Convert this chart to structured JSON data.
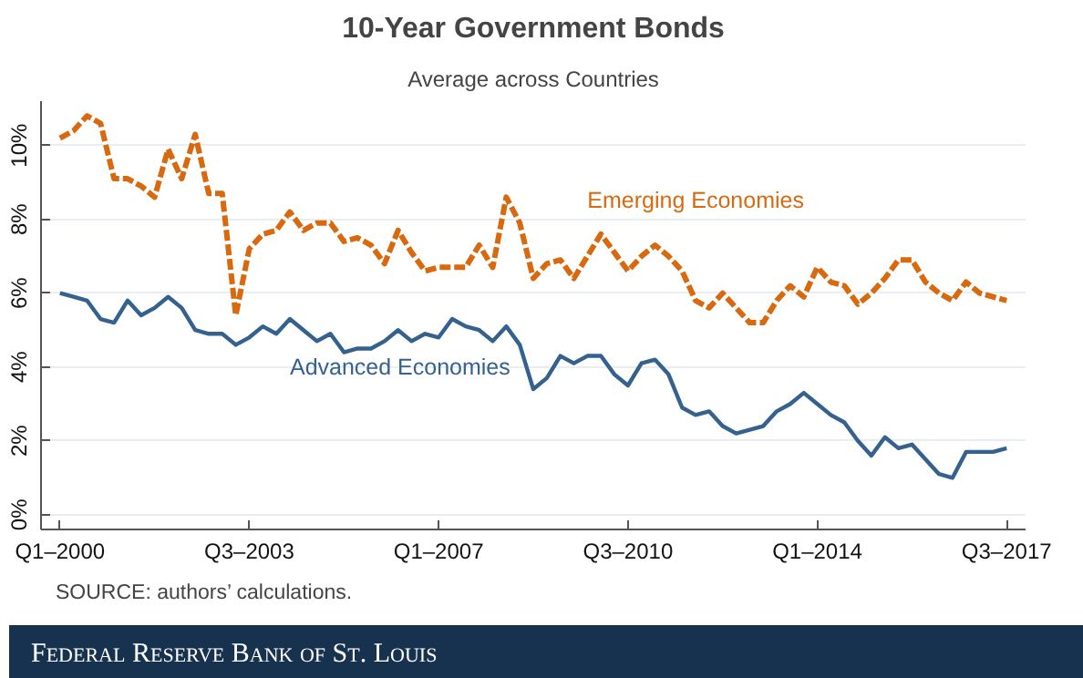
{
  "chart_data": {
    "type": "line",
    "title": "10-Year Government Bonds",
    "subtitle": "Average across Countries",
    "categories": [
      "Q1–2000",
      null,
      null,
      null,
      null,
      null,
      null,
      null,
      null,
      null,
      null,
      null,
      null,
      null,
      "Q3–2003",
      null,
      null,
      null,
      null,
      null,
      null,
      null,
      null,
      null,
      null,
      null,
      null,
      null,
      "Q1–2007",
      null,
      null,
      null,
      null,
      null,
      null,
      null,
      null,
      null,
      null,
      null,
      null,
      null,
      "Q3–2010",
      null,
      null,
      null,
      null,
      null,
      null,
      null,
      null,
      null,
      null,
      null,
      null,
      null,
      "Q1–2014",
      null,
      null,
      null,
      null,
      null,
      null,
      null,
      null,
      null,
      null,
      null,
      null,
      null,
      "Q3–2017"
    ],
    "series": [
      {
        "name": "Emerging Economies",
        "color": "#d9690f",
        "line_style": "dashed",
        "values": [
          10.2,
          10.4,
          10.8,
          10.6,
          9.1,
          9.1,
          8.9,
          8.6,
          9.9,
          9.1,
          10.3,
          8.7,
          8.7,
          5.4,
          7.2,
          7.6,
          7.7,
          8.2,
          7.7,
          7.9,
          7.9,
          7.4,
          7.5,
          7.3,
          6.8,
          7.7,
          7.1,
          6.6,
          6.7,
          6.7,
          6.7,
          7.3,
          6.7,
          8.6,
          7.9,
          6.4,
          6.8,
          6.9,
          6.4,
          7.0,
          7.6,
          7.1,
          6.6,
          7.0,
          7.3,
          7.0,
          6.6,
          5.8,
          5.6,
          6.0,
          5.6,
          5.2,
          5.2,
          5.8,
          6.2,
          5.9,
          6.7,
          6.3,
          6.2,
          5.7,
          6.0,
          6.4,
          6.9,
          6.9,
          6.3,
          6.0,
          5.8,
          6.3,
          6.0,
          5.9,
          5.8
        ]
      },
      {
        "name": "Advanced Economies",
        "color": "#35618f",
        "line_style": "solid",
        "values": [
          6.0,
          5.9,
          5.8,
          5.3,
          5.2,
          5.8,
          5.4,
          5.6,
          5.9,
          5.6,
          5.0,
          4.9,
          4.9,
          4.6,
          4.8,
          5.1,
          4.9,
          5.3,
          5.0,
          4.7,
          4.9,
          4.4,
          4.5,
          4.5,
          4.7,
          5.0,
          4.7,
          4.9,
          4.8,
          5.3,
          5.1,
          5.0,
          4.7,
          5.1,
          4.6,
          3.4,
          3.7,
          4.3,
          4.1,
          4.3,
          4.3,
          3.8,
          3.5,
          4.1,
          4.2,
          3.8,
          2.9,
          2.7,
          2.8,
          2.4,
          2.2,
          2.3,
          2.4,
          2.8,
          3.0,
          3.3,
          3.0,
          2.7,
          2.5,
          2.0,
          1.6,
          2.1,
          1.8,
          1.9,
          1.5,
          1.1,
          1.0,
          1.7,
          1.7,
          1.7,
          1.8
        ]
      }
    ],
    "ylim": [
      -0.4,
      11.2
    ],
    "yticks": [
      {
        "value": 0,
        "label": "0%"
      },
      {
        "value": 2,
        "label": "2%"
      },
      {
        "value": 4,
        "label": "4%"
      },
      {
        "value": 6,
        "label": "6%"
      },
      {
        "value": 8,
        "label": "8%"
      },
      {
        "value": 10,
        "label": "10%"
      }
    ],
    "grid": "y",
    "annotations": [
      "SOURCE: authors’ calculations.",
      "Federal Reserve Bank of St. Louis"
    ]
  }
}
